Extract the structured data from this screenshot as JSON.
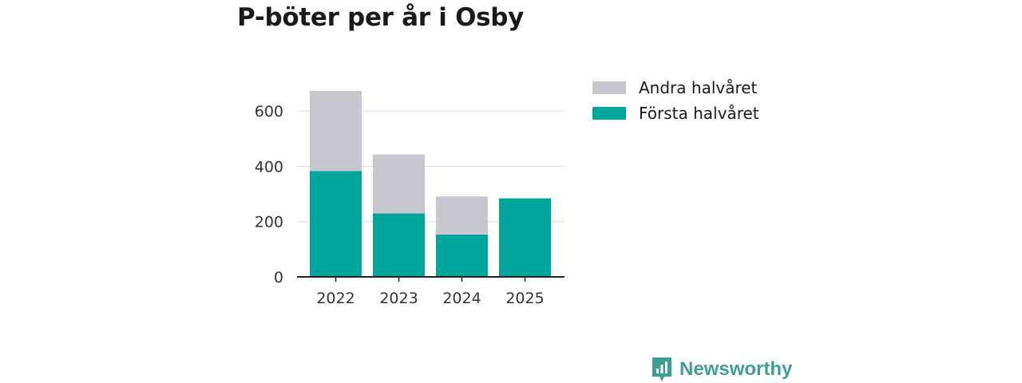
{
  "chart_data": {
    "type": "bar",
    "stacked": true,
    "title": "P-böter per år i Osby",
    "categories": [
      "2022",
      "2023",
      "2024",
      "2025"
    ],
    "series": [
      {
        "name": "Första halvåret",
        "values": [
          383,
          230,
          153,
          284
        ],
        "color": "#00a59b"
      },
      {
        "name": "Andra halvåret",
        "values": [
          290,
          213,
          138,
          0
        ],
        "color": "#c8c7cf"
      }
    ],
    "legend": [
      "Andra halvåret",
      "Första halvåret"
    ],
    "yticks": [
      0,
      200,
      400,
      600
    ],
    "ylim": [
      0,
      700
    ],
    "xlabel": "",
    "ylabel": "",
    "legend_position": "top-right",
    "grid": true
  },
  "brand": {
    "name": "Newsworthy",
    "color": "#3f9e96"
  }
}
